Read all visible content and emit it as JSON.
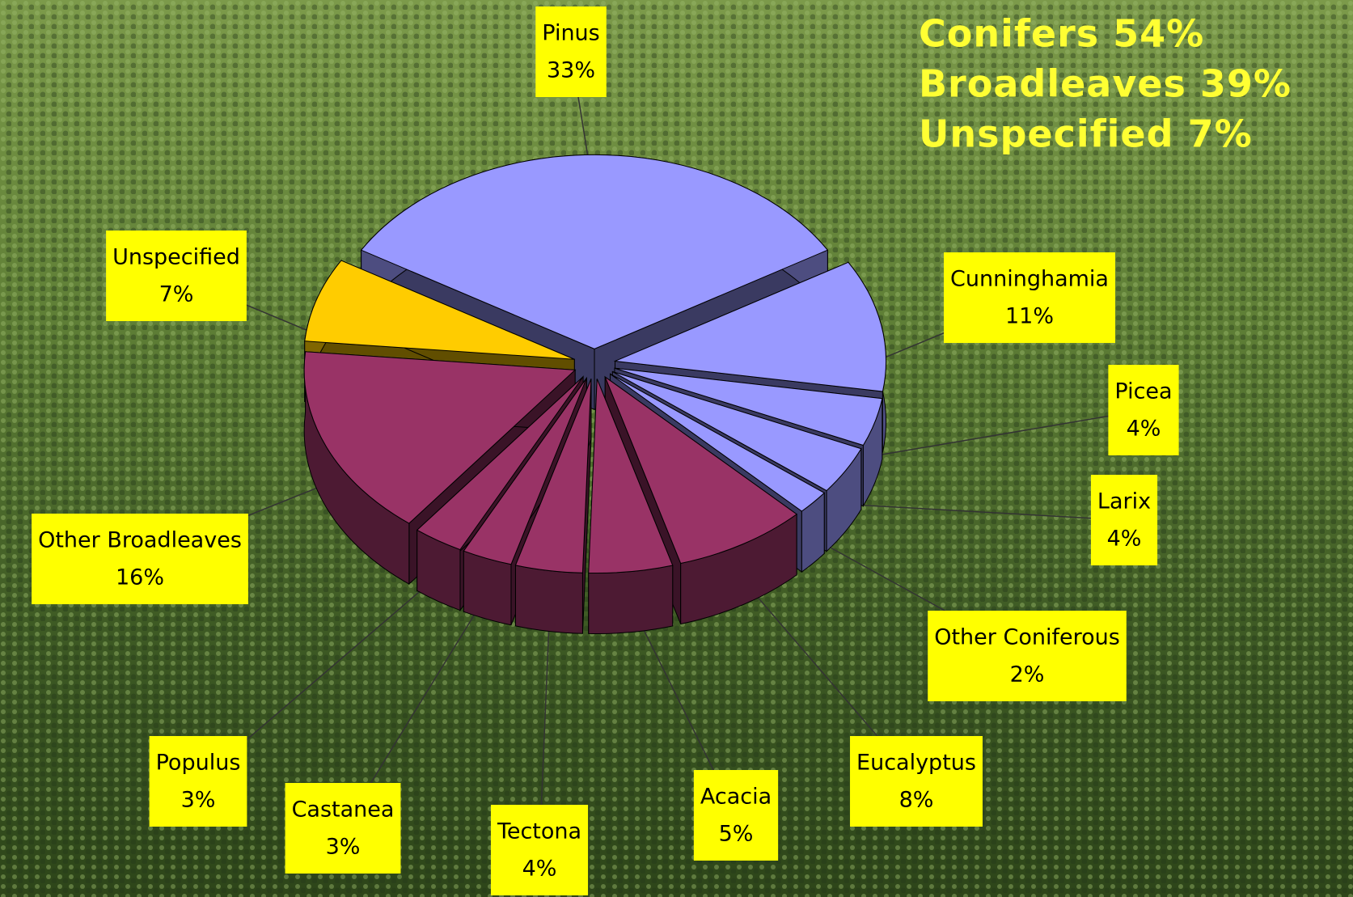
{
  "chart_data": {
    "type": "pie",
    "categories": [
      "Pinus",
      "Cunninghamia",
      "Picea",
      "Larix",
      "Other Coniferous",
      "Eucalyptus",
      "Acacia",
      "Tectona",
      "Castanea",
      "Populus",
      "Other Broadleaves",
      "Unspecified"
    ],
    "values": [
      33,
      11,
      4,
      4,
      2,
      8,
      5,
      4,
      3,
      3,
      16,
      7
    ],
    "value_labels": [
      "33%",
      "11%",
      "4%",
      "4%",
      "2%",
      "8%",
      "5%",
      "4%",
      "3%",
      "3%",
      "16%",
      "7%"
    ],
    "colors": [
      "#9999ff",
      "#9999ff",
      "#9999ff",
      "#9999ff",
      "#9999ff",
      "#993366",
      "#993366",
      "#993366",
      "#993366",
      "#993366",
      "#993366",
      "#ffcc00"
    ],
    "annotations": [
      "Conifers 54%",
      "Broadleaves 39%",
      "Unspecified 7%"
    ]
  }
}
